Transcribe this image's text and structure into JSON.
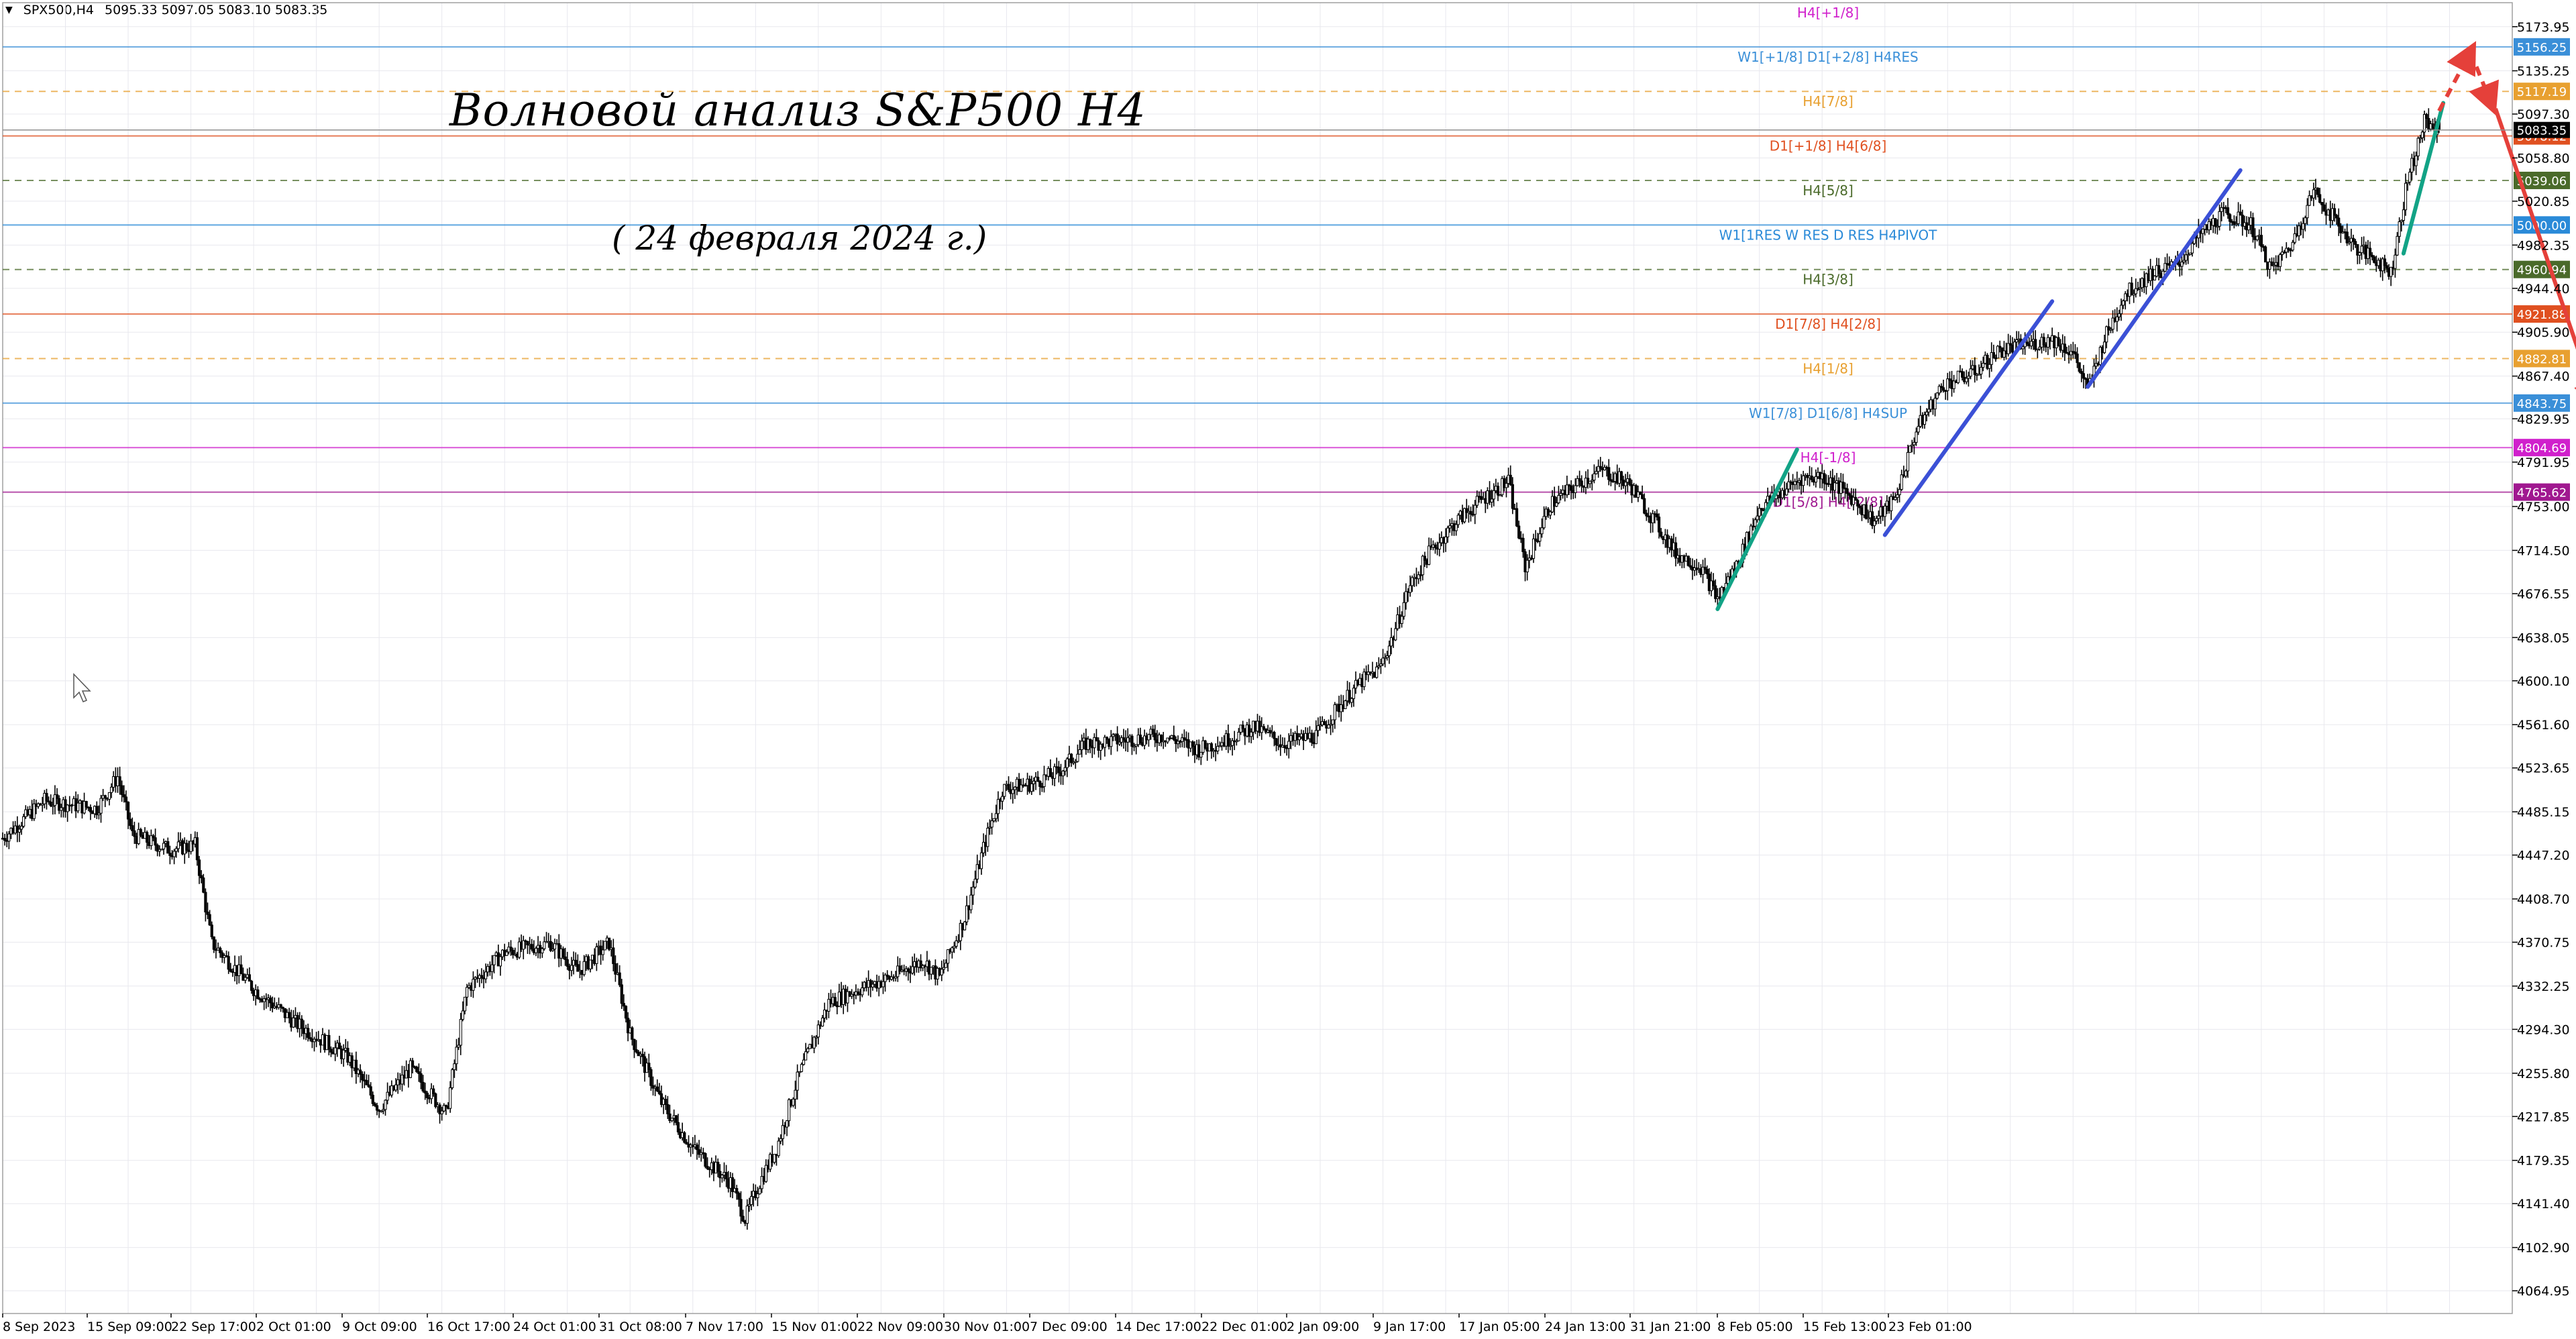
{
  "header": {
    "symbol": "SPX500,H4",
    "ohlc": "5095.33 5097.05 5083.10 5083.35"
  },
  "annotation": {
    "title": "Волновой анализ S&P500 H4",
    "date": "( 24 февраля 2024 г.)"
  },
  "colors": {
    "background": "#ffffff",
    "grid": "#e8e8ee",
    "candles": "#000000",
    "wave_green": "#12a386",
    "wave_blue": "#3b50d6",
    "forecast_red": "#e5403a"
  },
  "chart_data": {
    "type": "candlestick",
    "symbol": "SPX500",
    "timeframe": "H4",
    "title": "Волновой анализ S&P500 H4",
    "subtitle": "( 24 февраля 2024 г.)",
    "grid": true,
    "ylim": [
      4045.0,
      5195.0
    ],
    "y_ticks": [
      "5173.95",
      "5135.25",
      "5097.30",
      "5058.80",
      "5020.85",
      "4982.35",
      "4944.40",
      "4905.90",
      "4867.40",
      "4829.95",
      "4791.95",
      "4753.00",
      "4714.50",
      "4676.55",
      "4638.05",
      "4600.10",
      "4561.60",
      "4523.65",
      "4485.15",
      "4447.20",
      "4408.70",
      "4370.75",
      "4332.25",
      "4294.30",
      "4255.80",
      "4217.85",
      "4179.35",
      "4141.40",
      "4102.90",
      "4064.95"
    ],
    "x_ticks": [
      "8 Sep 2023",
      "15 Sep 09:00",
      "22 Sep 17:00",
      "2 Oct 01:00",
      "9 Oct 09:00",
      "16 Oct 17:00",
      "24 Oct 01:00",
      "31 Oct 08:00",
      "7 Nov 17:00",
      "15 Nov 01:00",
      "22 Nov 09:00",
      "30 Nov 01:00",
      "7 Dec 09:00",
      "14 Dec 17:00",
      "22 Dec 01:00",
      "2 Jan 09:00",
      "9 Jan 17:00",
      "17 Jan 05:00",
      "24 Jan 13:00",
      "31 Jan 21:00",
      "8 Feb 05:00",
      "15 Feb 13:00",
      "23 Feb 01:00"
    ],
    "price_path": [
      [
        0,
        4462
      ],
      [
        20,
        4495
      ],
      [
        45,
        4488
      ],
      [
        55,
        4516
      ],
      [
        62,
        4465
      ],
      [
        80,
        4452
      ],
      [
        92,
        4456
      ],
      [
        100,
        4370
      ],
      [
        120,
        4330
      ],
      [
        140,
        4300
      ],
      [
        165,
        4270
      ],
      [
        180,
        4225
      ],
      [
        195,
        4260
      ],
      [
        212,
        4220
      ],
      [
        222,
        4330
      ],
      [
        240,
        4362
      ],
      [
        262,
        4370
      ],
      [
        275,
        4345
      ],
      [
        290,
        4370
      ],
      [
        300,
        4290
      ],
      [
        315,
        4230
      ],
      [
        330,
        4190
      ],
      [
        348,
        4160
      ],
      [
        355,
        4128
      ],
      [
        362,
        4160
      ],
      [
        370,
        4190
      ],
      [
        380,
        4250
      ],
      [
        395,
        4318
      ],
      [
        410,
        4330
      ],
      [
        425,
        4340
      ],
      [
        440,
        4355
      ],
      [
        448,
        4340
      ],
      [
        460,
        4392
      ],
      [
        470,
        4460
      ],
      [
        478,
        4505
      ],
      [
        492,
        4510
      ],
      [
        505,
        4520
      ],
      [
        518,
        4545
      ],
      [
        535,
        4548
      ],
      [
        555,
        4552
      ],
      [
        572,
        4540
      ],
      [
        585,
        4548
      ],
      [
        598,
        4560
      ],
      [
        612,
        4545
      ],
      [
        628,
        4552
      ],
      [
        640,
        4580
      ],
      [
        650,
        4600
      ],
      [
        658,
        4610
      ],
      [
        665,
        4640
      ],
      [
        672,
        4680
      ],
      [
        682,
        4712
      ],
      [
        695,
        4740
      ],
      [
        708,
        4760
      ],
      [
        720,
        4775
      ],
      [
        728,
        4700
      ],
      [
        740,
        4755
      ],
      [
        755,
        4775
      ],
      [
        765,
        4785
      ],
      [
        778,
        4772
      ],
      [
        790,
        4740
      ],
      [
        800,
        4712
      ],
      [
        812,
        4700
      ],
      [
        820,
        4672
      ],
      [
        830,
        4705
      ],
      [
        840,
        4752
      ],
      [
        850,
        4765
      ],
      [
        860,
        4778
      ],
      [
        870,
        4780
      ],
      [
        885,
        4760
      ],
      [
        895,
        4740
      ],
      [
        905,
        4760
      ],
      [
        915,
        4820
      ],
      [
        928,
        4860
      ],
      [
        942,
        4870
      ],
      [
        955,
        4890
      ],
      [
        968,
        4895
      ],
      [
        980,
        4900
      ],
      [
        990,
        4888
      ],
      [
        997,
        4855
      ],
      [
        1005,
        4900
      ],
      [
        1015,
        4940
      ],
      [
        1028,
        4958
      ],
      [
        1040,
        4965
      ],
      [
        1050,
        4990
      ],
      [
        1062,
        5010
      ],
      [
        1075,
        5000
      ],
      [
        1085,
        4960
      ],
      [
        1095,
        4985
      ],
      [
        1105,
        5030
      ],
      [
        1115,
        5005
      ],
      [
        1125,
        4980
      ],
      [
        1135,
        4970
      ],
      [
        1142,
        4958
      ],
      [
        1150,
        5040
      ],
      [
        1158,
        5090
      ],
      [
        1165,
        5083
      ]
    ],
    "levels": [
      {
        "label": "H4[+1/8]",
        "price": 5195.0,
        "value_tag": "",
        "color": "#d020cc"
      },
      {
        "label": "W1[+1/8] D1[+2/8] H4RES",
        "price": 5156.25,
        "value_tag": "5156.25",
        "color": "#3a8fd8"
      },
      {
        "label": "H4[7/8]",
        "price": 5117.19,
        "value_tag": "5117.19",
        "color": "#e8a030"
      },
      {
        "label": "D1[+1/8] H4[6/8]",
        "price": 5078.12,
        "value_tag": "5078.12",
        "color": "#e05020"
      },
      {
        "label": "H4[5/8]",
        "price": 5039.06,
        "value_tag": "5039.06",
        "color": "#4a6a2a"
      },
      {
        "label": "W1[1RES W RES D RES H4PIVOT",
        "price": 5000.0,
        "value_tag": "5000.00",
        "color": "#2a8ad8"
      },
      {
        "label": "H4[3/8]",
        "price": 4960.94,
        "value_tag": "4960.94",
        "color": "#4a6a2a"
      },
      {
        "label": "D1[7/8] H4[2/8]",
        "price": 4921.88,
        "value_tag": "4921.88",
        "color": "#e05020"
      },
      {
        "label": "H4[1/8]",
        "price": 4882.81,
        "value_tag": "4882.81",
        "color": "#e8a030"
      },
      {
        "label": "W1[7/8] D1[6/8] H4SUP",
        "price": 4843.75,
        "value_tag": "4843.75",
        "color": "#3a8fd8"
      },
      {
        "label": "H4[-1/8]",
        "price": 4804.69,
        "value_tag": "4804.69",
        "color": "#d020cc"
      },
      {
        "label": "D1[5/8] H4[-2/8]",
        "price": 4765.62,
        "value_tag": "4765.62",
        "color": "#a01890"
      }
    ],
    "current_price": "5083.35",
    "waves": [
      {
        "name": "wave-green-1",
        "color": "#12a386",
        "from": [
          820,
          4663
        ],
        "to": [
          858,
          4803
        ]
      },
      {
        "name": "wave-blue-1",
        "color": "#3b50d6",
        "from": [
          900,
          4728
        ],
        "to": [
          980,
          4933
        ]
      },
      {
        "name": "wave-blue-2",
        "color": "#3b50d6",
        "from": [
          997,
          4858
        ],
        "to": [
          1070,
          5048
        ]
      },
      {
        "name": "wave-green-2",
        "color": "#12a386",
        "from": [
          1148,
          4975
        ],
        "to": [
          1167,
          5107
        ]
      }
    ],
    "forecast": [
      {
        "name": "forecast-up",
        "style": "dashed",
        "color": "#e5403a",
        "from": [
          1165,
          5100
        ],
        "to": [
          1180,
          5152
        ]
      },
      {
        "name": "forecast-dip",
        "style": "dashed",
        "color": "#e5403a",
        "from": [
          1180,
          5152
        ],
        "to": [
          1190,
          5106
        ]
      },
      {
        "name": "forecast-down",
        "style": "solid",
        "color": "#e5403a",
        "from": [
          1192,
          5102
        ],
        "to": [
          1240,
          4845
        ]
      }
    ]
  }
}
